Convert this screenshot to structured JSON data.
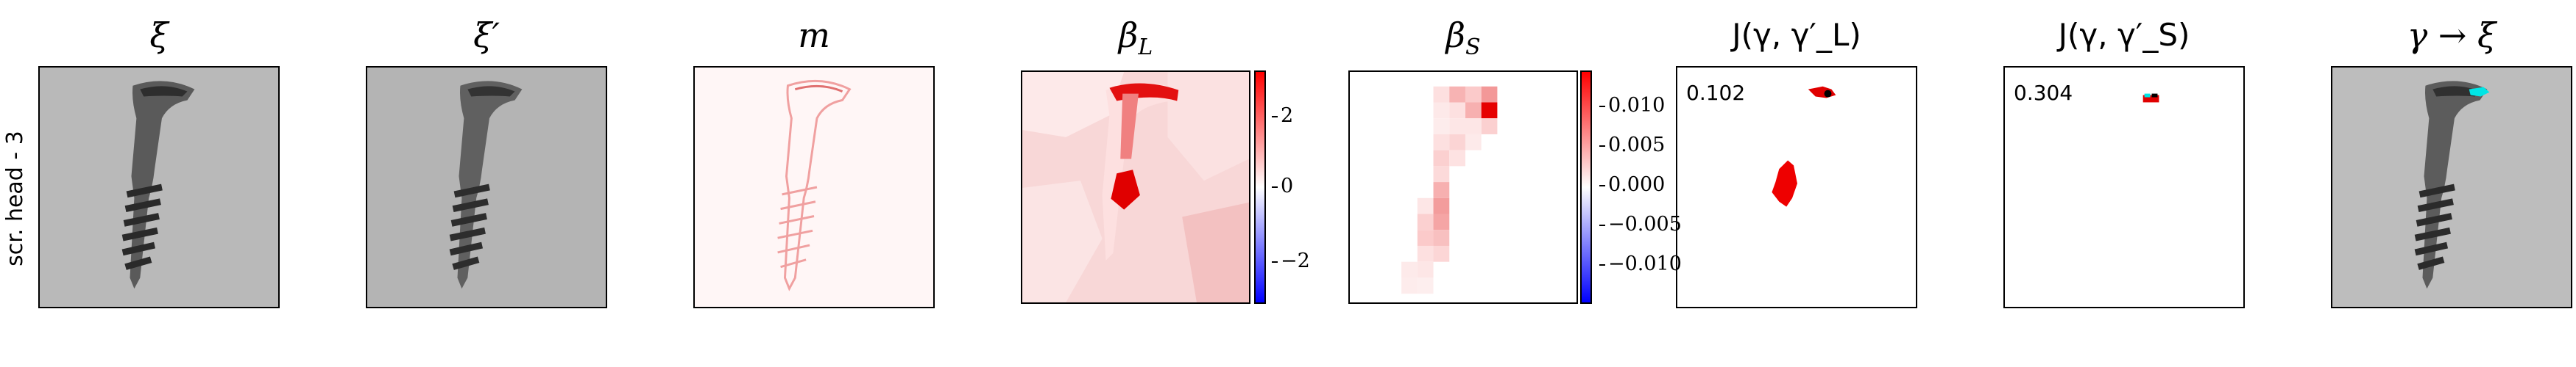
{
  "row_label": "scr. head - 3",
  "panels": [
    {
      "title": "ξ"
    },
    {
      "title": "ξ′"
    },
    {
      "title": "m"
    },
    {
      "title": "β_L",
      "title_main": "β",
      "title_sub": "L"
    },
    {
      "title": "β_S",
      "title_main": "β",
      "title_sub": "S"
    },
    {
      "title": "J(γ, γ′_L)",
      "score": "0.102"
    },
    {
      "title": "J(γ, γ′_S)",
      "score": "0.304"
    },
    {
      "title": "γ → ξ"
    }
  ],
  "colorbar_L": {
    "ticks": [
      "2",
      "0",
      "−2"
    ],
    "min": -3,
    "max": 3
  },
  "colorbar_S": {
    "ticks": [
      "0.010",
      "0.005",
      "0.000",
      "−0.005",
      "−0.010"
    ],
    "min": -0.014,
    "max": 0.014
  },
  "colors": {
    "positive": "#ff0000",
    "negative": "#0000ff",
    "neutral": "#ffffff",
    "overlay": "#00e5e5"
  }
}
